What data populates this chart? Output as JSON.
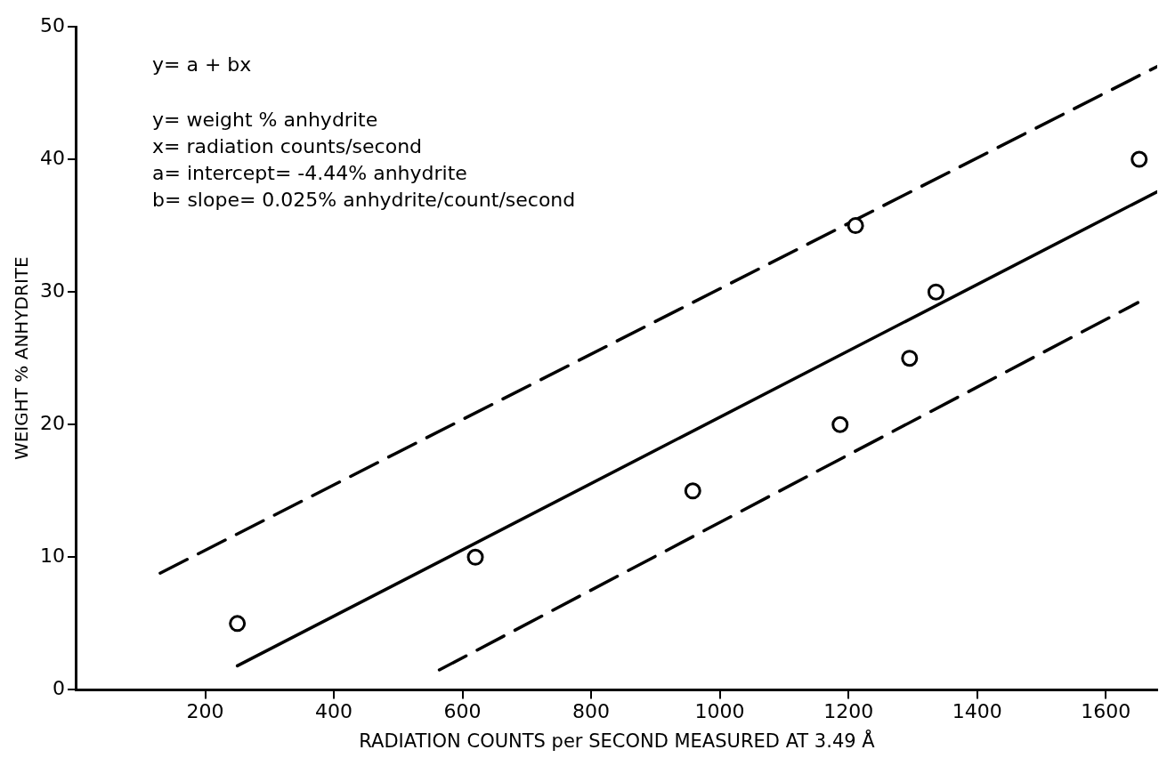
{
  "chart_data": {
    "type": "scatter",
    "xlabel": "RADIATION COUNTS per SECOND MEASURED AT 3.49 Å",
    "ylabel": "WEIGHT % ANHYDRITE",
    "xlim": [
      0,
      1680
    ],
    "xticks": [
      200,
      400,
      600,
      800,
      1000,
      1200,
      1400,
      1600
    ],
    "ylim": [
      0,
      50
    ],
    "yticks": [
      0,
      10,
      20,
      30,
      40,
      50
    ],
    "grid": false,
    "legend": false,
    "annotations": [
      "y= a + bx",
      "y= weight % anhydrite",
      "x= radiation counts/second",
      "a= intercept= -4.44% anhydrite",
      "b= slope= 0.025% anhydrite/count/second"
    ],
    "series": [
      {
        "type": "scatter",
        "color": "#000000",
        "marker": "circle",
        "x": [
          250,
          620,
          958,
          1187,
          1211,
          1295,
          1336,
          1652
        ],
        "values": [
          5,
          10,
          15,
          20,
          35,
          25,
          30,
          40
        ]
      },
      {
        "type": "line",
        "color": "#000000",
        "marker": "none",
        "line_style": "solid",
        "x": [
          250,
          1680
        ],
        "values": [
          1.81,
          37.56
        ]
      },
      {
        "type": "line",
        "color": "#000000",
        "marker": "none",
        "line_style": "dashed",
        "x": [
          130,
          1680
        ],
        "values": [
          8.8,
          47
        ]
      },
      {
        "type": "line",
        "color": "#000000",
        "marker": "none",
        "line_style": "dashed",
        "x": [
          564,
          1650
        ],
        "values": [
          1.5,
          29.2
        ]
      }
    ]
  }
}
